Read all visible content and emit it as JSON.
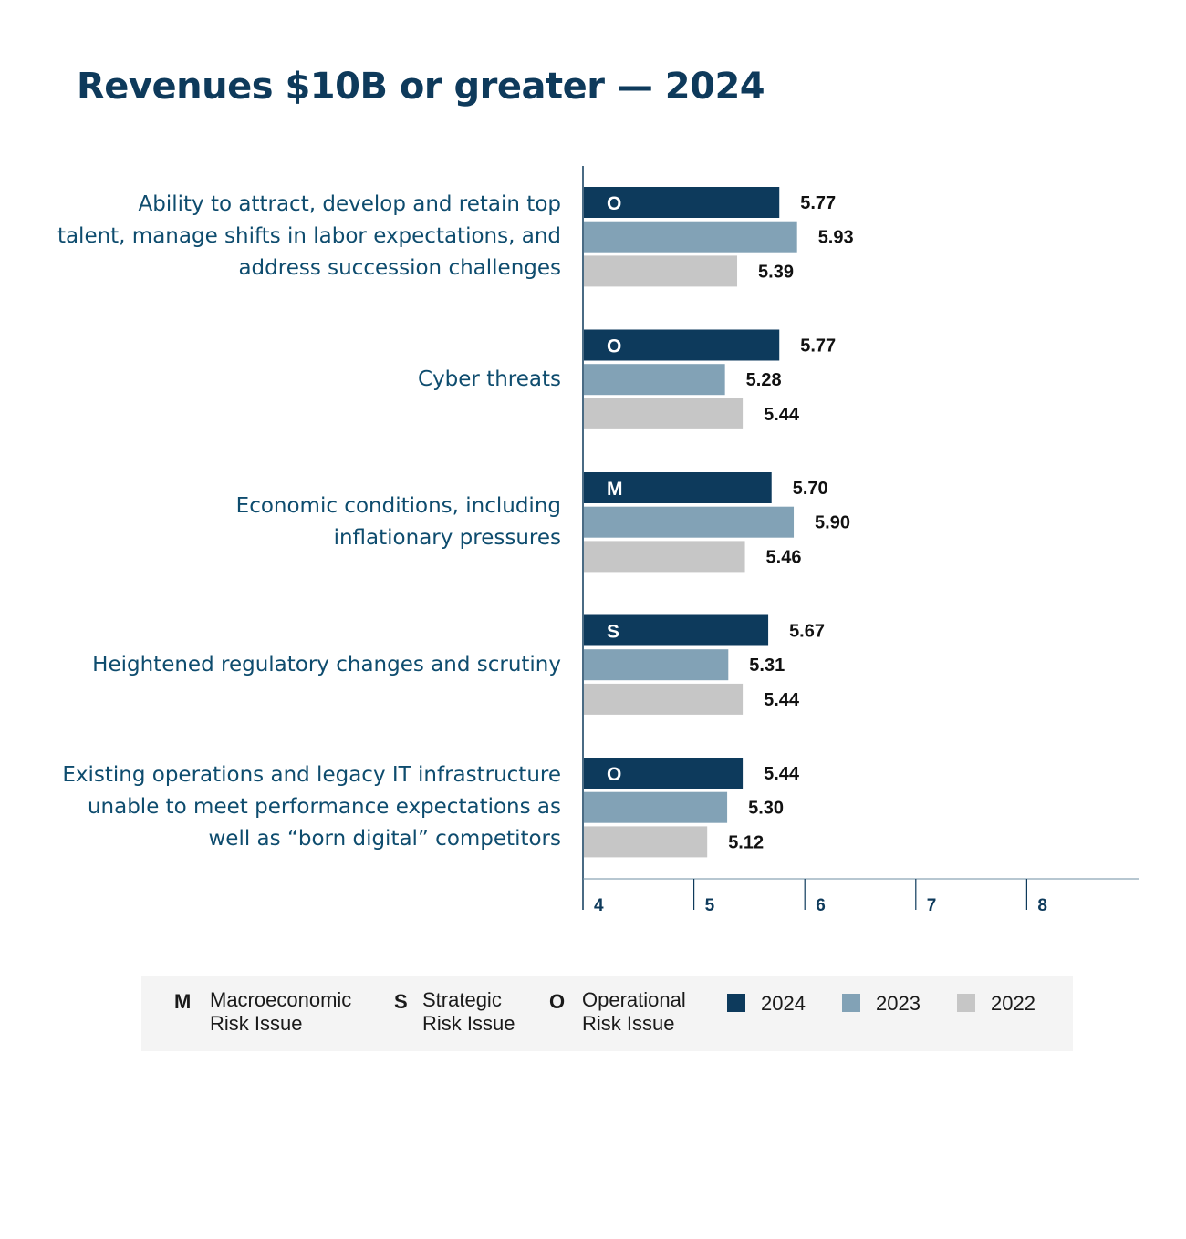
{
  "title": "Revenues $10B or greater — 2024",
  "colors": {
    "2024": "#0d3a5c",
    "2023": "#82a2b6",
    "2022": "#c6c6c6",
    "axis": "#0e3a5b"
  },
  "legend": {
    "risk_types": [
      {
        "letter": "M",
        "line1": "Macroeconomic",
        "line2": "Risk Issue"
      },
      {
        "letter": "S",
        "line1": "Strategic",
        "line2": "Risk Issue"
      },
      {
        "letter": "O",
        "line1": "Operational",
        "line2": "Risk Issue"
      }
    ],
    "years": [
      "2024",
      "2023",
      "2022"
    ]
  },
  "chart_data": {
    "type": "bar",
    "orientation": "horizontal",
    "title": "Revenues $10B or greater — 2024",
    "categories": [
      [
        "Ability to attract, develop and retain top",
        "talent, manage shifts in labor expectations, and",
        "address succession challenges"
      ],
      [
        "Cyber threats"
      ],
      [
        "Economic conditions, including",
        "inflationary pressures"
      ],
      [
        "Heightened regulatory changes and scrutiny"
      ],
      [
        "Existing operations and legacy IT infrastructure",
        "unable to meet performance expectations as",
        "well as “born digital” competitors"
      ]
    ],
    "risk_codes": [
      "O",
      "O",
      "M",
      "S",
      "O"
    ],
    "series": [
      {
        "name": "2024",
        "values": [
          5.77,
          5.77,
          5.7,
          5.67,
          5.44
        ]
      },
      {
        "name": "2023",
        "values": [
          5.93,
          5.28,
          5.9,
          5.31,
          5.3
        ]
      },
      {
        "name": "2022",
        "values": [
          5.39,
          5.44,
          5.46,
          5.44,
          5.12
        ]
      }
    ],
    "value_labels": [
      [
        "5.77",
        "5.77",
        "5.70",
        "5.67",
        "5.44"
      ],
      [
        "5.93",
        "5.28",
        "5.90",
        "5.31",
        "5.30"
      ],
      [
        "5.39",
        "5.44",
        "5.46",
        "5.44",
        "5.12"
      ]
    ],
    "xlim": [
      4,
      9
    ],
    "xticks": [
      4,
      5,
      6,
      7,
      8
    ],
    "xtick_labels": [
      "4",
      "5",
      "6",
      "7",
      "8"
    ],
    "grid": false,
    "legend_position": "bottom"
  }
}
